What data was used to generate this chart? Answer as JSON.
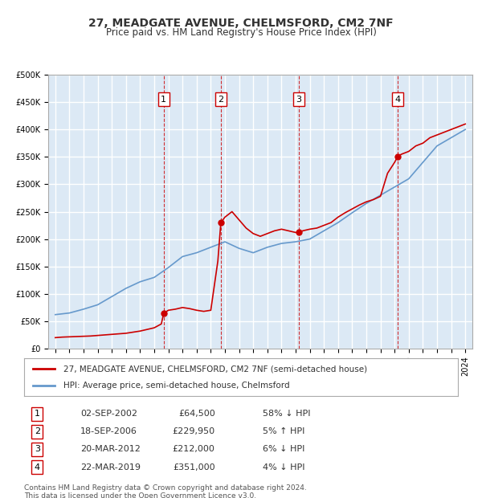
{
  "title": "27, MEADGATE AVENUE, CHELMSFORD, CM2 7NF",
  "subtitle": "Price paid vs. HM Land Registry's House Price Index (HPI)",
  "footer1": "Contains HM Land Registry data © Crown copyright and database right 2024.",
  "footer2": "This data is licensed under the Open Government Licence v3.0.",
  "legend_red": "27, MEADGATE AVENUE, CHELMSFORD, CM2 7NF (semi-detached house)",
  "legend_blue": "HPI: Average price, semi-detached house, Chelmsford",
  "transactions": [
    {
      "num": 1,
      "date": "02-SEP-2002",
      "price": 64500,
      "pct": "58%",
      "dir": "↓",
      "x_year": 2002.67
    },
    {
      "num": 2,
      "date": "18-SEP-2006",
      "price": 229950,
      "pct": "5%",
      "dir": "↑",
      "x_year": 2006.71
    },
    {
      "num": 3,
      "date": "20-MAR-2012",
      "price": 212000,
      "pct": "6%",
      "dir": "↓",
      "x_year": 2012.22
    },
    {
      "num": 4,
      "date": "22-MAR-2019",
      "price": 351000,
      "pct": "4%",
      "dir": "↓",
      "x_year": 2019.22
    }
  ],
  "hpi_years": [
    1995,
    1996,
    1997,
    1998,
    1999,
    2000,
    2001,
    2002,
    2003,
    2004,
    2005,
    2006,
    2007,
    2008,
    2009,
    2010,
    2011,
    2012,
    2013,
    2014,
    2015,
    2016,
    2017,
    2018,
    2019,
    2020,
    2021,
    2022,
    2023,
    2024
  ],
  "hpi_values": [
    62000,
    65000,
    72000,
    80000,
    95000,
    110000,
    122000,
    130000,
    148000,
    168000,
    175000,
    185000,
    195000,
    183000,
    175000,
    185000,
    192000,
    195000,
    200000,
    215000,
    230000,
    248000,
    265000,
    280000,
    295000,
    310000,
    340000,
    370000,
    385000,
    400000
  ],
  "price_paid_years": [
    1995,
    1995.5,
    1996,
    1996.5,
    1997,
    1997.5,
    1998,
    1998.5,
    1999,
    1999.5,
    2000,
    2000.5,
    2001,
    2001.5,
    2002,
    2002.5,
    2002.67,
    2003,
    2003.5,
    2004,
    2004.5,
    2005,
    2005.5,
    2006,
    2006.5,
    2006.71,
    2007,
    2007.5,
    2008,
    2008.5,
    2009,
    2009.5,
    2010,
    2010.5,
    2011,
    2011.5,
    2012,
    2012.22,
    2012.5,
    2013,
    2013.5,
    2014,
    2014.5,
    2015,
    2015.5,
    2016,
    2016.5,
    2017,
    2017.5,
    2018,
    2018.5,
    2019,
    2019.22,
    2019.5,
    2020,
    2020.5,
    2021,
    2021.5,
    2022,
    2022.5,
    2023,
    2023.5,
    2024
  ],
  "price_paid_values": [
    20000,
    21000,
    21500,
    22000,
    22500,
    23000,
    24000,
    25000,
    26000,
    27000,
    28000,
    30000,
    32000,
    35000,
    38000,
    45000,
    64500,
    70000,
    72000,
    75000,
    73000,
    70000,
    68000,
    70000,
    160000,
    229950,
    240000,
    250000,
    235000,
    220000,
    210000,
    205000,
    210000,
    215000,
    218000,
    215000,
    212000,
    212000,
    215000,
    218000,
    220000,
    225000,
    230000,
    240000,
    248000,
    255000,
    262000,
    268000,
    272000,
    278000,
    320000,
    340000,
    351000,
    355000,
    360000,
    370000,
    375000,
    385000,
    390000,
    395000,
    400000,
    405000,
    410000
  ],
  "ylim": [
    0,
    500000
  ],
  "xlim": [
    1994.5,
    2024.5
  ],
  "yticks": [
    0,
    50000,
    100000,
    150000,
    200000,
    250000,
    300000,
    350000,
    400000,
    450000,
    500000
  ],
  "xticks": [
    1995,
    1996,
    1997,
    1998,
    1999,
    2000,
    2001,
    2002,
    2003,
    2004,
    2005,
    2006,
    2007,
    2008,
    2009,
    2010,
    2011,
    2012,
    2013,
    2014,
    2015,
    2016,
    2017,
    2018,
    2019,
    2020,
    2021,
    2022,
    2023,
    2024
  ],
  "bg_color": "#dce9f5",
  "plot_bg": "#dce9f5",
  "grid_color": "#ffffff",
  "red_color": "#cc0000",
  "blue_color": "#6699cc"
}
